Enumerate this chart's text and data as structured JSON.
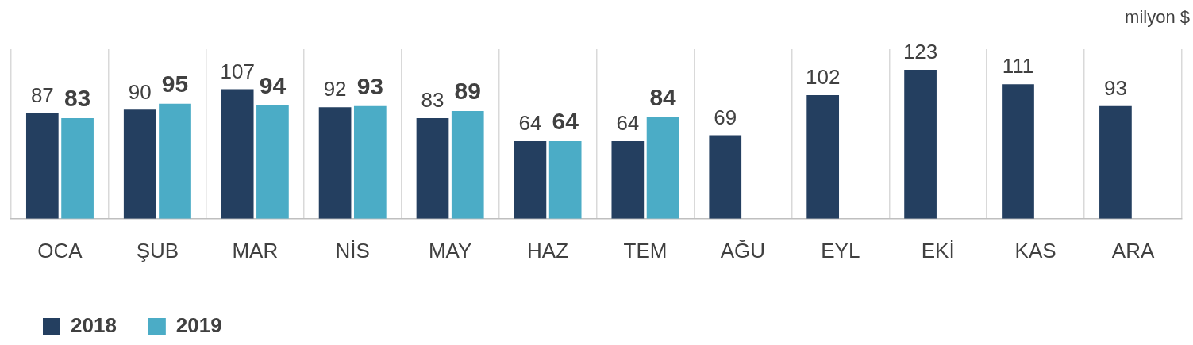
{
  "chart_data": {
    "type": "bar",
    "ylabel": "milyon $",
    "categories": [
      "OCA",
      "ŞUB",
      "MAR",
      "NİS",
      "MAY",
      "HAZ",
      "TEM",
      "AĞU",
      "EYL",
      "EKİ",
      "KAS",
      "ARA"
    ],
    "series": [
      {
        "name": "2018",
        "color": "#243f60",
        "values": [
          87,
          90,
          107,
          92,
          83,
          64,
          64,
          69,
          102,
          123,
          111,
          93
        ]
      },
      {
        "name": "2019",
        "color": "#4bacc6",
        "values": [
          83,
          95,
          94,
          93,
          89,
          64,
          84,
          null,
          null,
          null,
          null,
          null
        ]
      }
    ],
    "data_labels": true,
    "grid": "x",
    "legend": "bottom left",
    "tick_labels": "x"
  }
}
